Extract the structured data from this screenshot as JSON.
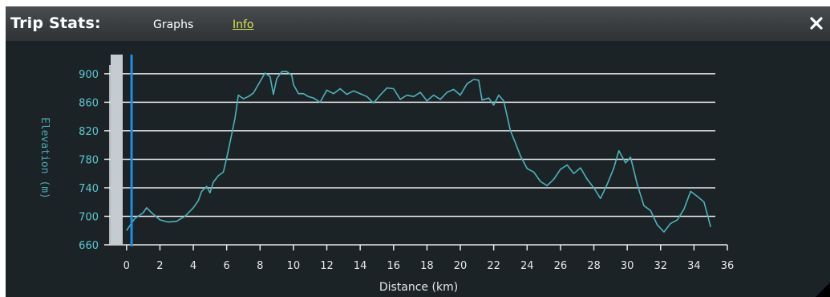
{
  "header": {
    "title": "Trip Stats:",
    "tabs": [
      {
        "label": "Graphs",
        "active": true
      },
      {
        "label": "Info",
        "active": false
      }
    ],
    "close_label": "✕"
  },
  "colors": {
    "panel_bg": "#1b2327",
    "line": "#4fb2ba",
    "grid": "#e8e8e8",
    "ytick": "#5ec8d2",
    "marker": "#1e8fe6",
    "scrollbar": "#c4ccd2",
    "link": "#d8e84a"
  },
  "chart_data": {
    "type": "line",
    "xlabel": "Distance (km)",
    "ylabel": "Elevation (m)",
    "xlim": [
      -1,
      36
    ],
    "ylim": [
      660,
      910
    ],
    "xticks": [
      0,
      2,
      4,
      6,
      8,
      10,
      12,
      14,
      16,
      18,
      20,
      22,
      24,
      26,
      28,
      30,
      32,
      34,
      36
    ],
    "yticks": [
      660,
      700,
      740,
      780,
      820,
      860,
      900
    ],
    "grid": true,
    "current_position_km": 0.3,
    "series": [
      {
        "points": [
          [
            0.0,
            680
          ],
          [
            0.5,
            697
          ],
          [
            1.0,
            705
          ],
          [
            1.2,
            712
          ],
          [
            1.5,
            705
          ],
          [
            2.0,
            695
          ],
          [
            2.5,
            692
          ],
          [
            3.0,
            693
          ],
          [
            3.5,
            700
          ],
          [
            4.0,
            712
          ],
          [
            4.3,
            722
          ],
          [
            4.5,
            735
          ],
          [
            4.8,
            742
          ],
          [
            5.0,
            733
          ],
          [
            5.2,
            748
          ],
          [
            5.5,
            757
          ],
          [
            5.8,
            762
          ],
          [
            6.0,
            782
          ],
          [
            6.3,
            815
          ],
          [
            6.5,
            838
          ],
          [
            6.7,
            870
          ],
          [
            7.0,
            865
          ],
          [
            7.3,
            868
          ],
          [
            7.6,
            873
          ],
          [
            8.0,
            889
          ],
          [
            8.3,
            901
          ],
          [
            8.6,
            896
          ],
          [
            8.8,
            871
          ],
          [
            9.0,
            893
          ],
          [
            9.3,
            903
          ],
          [
            9.6,
            903
          ],
          [
            9.9,
            898
          ],
          [
            10.0,
            885
          ],
          [
            10.3,
            872
          ],
          [
            10.6,
            872
          ],
          [
            10.9,
            868
          ],
          [
            11.2,
            866
          ],
          [
            11.6,
            860
          ],
          [
            12.0,
            877
          ],
          [
            12.4,
            872
          ],
          [
            12.8,
            879
          ],
          [
            13.2,
            871
          ],
          [
            13.6,
            876
          ],
          [
            14.0,
            872
          ],
          [
            14.4,
            868
          ],
          [
            14.8,
            859
          ],
          [
            15.2,
            870
          ],
          [
            15.6,
            880
          ],
          [
            16.0,
            879
          ],
          [
            16.4,
            864
          ],
          [
            16.8,
            870
          ],
          [
            17.2,
            868
          ],
          [
            17.6,
            874
          ],
          [
            18.0,
            862
          ],
          [
            18.4,
            870
          ],
          [
            18.8,
            864
          ],
          [
            19.2,
            874
          ],
          [
            19.6,
            878
          ],
          [
            20.0,
            870
          ],
          [
            20.4,
            886
          ],
          [
            20.8,
            892
          ],
          [
            21.1,
            891
          ],
          [
            21.3,
            863
          ],
          [
            21.7,
            866
          ],
          [
            22.0,
            856
          ],
          [
            22.3,
            870
          ],
          [
            22.6,
            862
          ],
          [
            23.0,
            820
          ],
          [
            23.3,
            803
          ],
          [
            23.6,
            785
          ],
          [
            24.0,
            767
          ],
          [
            24.4,
            762
          ],
          [
            24.8,
            749
          ],
          [
            25.2,
            743
          ],
          [
            25.6,
            752
          ],
          [
            26.0,
            766
          ],
          [
            26.4,
            772
          ],
          [
            26.8,
            760
          ],
          [
            27.2,
            768
          ],
          [
            27.6,
            752
          ],
          [
            28.0,
            740
          ],
          [
            28.4,
            725
          ],
          [
            28.8,
            745
          ],
          [
            29.2,
            768
          ],
          [
            29.5,
            792
          ],
          [
            29.9,
            775
          ],
          [
            30.2,
            783
          ],
          [
            30.6,
            745
          ],
          [
            31.0,
            715
          ],
          [
            31.4,
            708
          ],
          [
            31.8,
            688
          ],
          [
            32.2,
            678
          ],
          [
            32.6,
            690
          ],
          [
            33.0,
            695
          ],
          [
            33.4,
            710
          ],
          [
            33.8,
            735
          ],
          [
            34.2,
            728
          ],
          [
            34.6,
            720
          ],
          [
            35.0,
            685
          ]
        ]
      }
    ]
  }
}
